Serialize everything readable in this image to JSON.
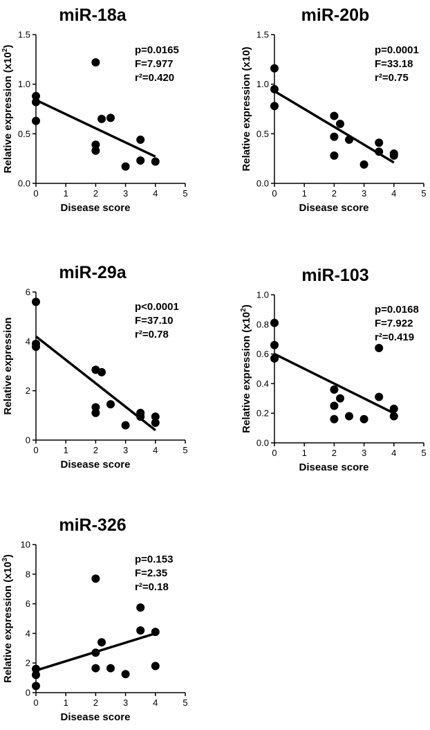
{
  "chart_data": [
    {
      "type": "scatter",
      "title": "miR-18a",
      "xlabel": "Disease score",
      "ylabel": "Relative expression (x10",
      "ylabel_exp": "2",
      "xlim": [
        0,
        5
      ],
      "ylim": [
        0,
        1.5
      ],
      "xticks": [
        "0",
        "1",
        "2",
        "3",
        "4",
        "5"
      ],
      "yticks": [
        "0.0",
        "0.5",
        "1.0",
        "1.5"
      ],
      "stats": [
        "p=0.0165",
        "F=7.977",
        "r²=0.420"
      ],
      "x": [
        0,
        0,
        0,
        2,
        2,
        2,
        2.2,
        2.5,
        3,
        3.5,
        3.5,
        4
      ],
      "y": [
        0.88,
        0.82,
        0.63,
        1.22,
        0.39,
        0.33,
        0.65,
        0.66,
        0.17,
        0.44,
        0.23,
        0.22
      ],
      "fit": {
        "x": [
          0,
          4
        ],
        "y": [
          0.84,
          0.27
        ]
      }
    },
    {
      "type": "scatter",
      "title": "miR-20b",
      "xlabel": "Disease score",
      "ylabel": "Relative expression (x10)",
      "ylabel_exp": "",
      "xlim": [
        0,
        5
      ],
      "ylim": [
        0,
        1.5
      ],
      "xticks": [
        "0",
        "1",
        "2",
        "3",
        "4",
        "5"
      ],
      "yticks": [
        "0.0",
        "0.5",
        "1.0",
        "1.5"
      ],
      "stats": [
        "p=0.0001",
        "F=33.18",
        "r²=0.75"
      ],
      "x": [
        0,
        0,
        0,
        2,
        2,
        2,
        2.2,
        2.5,
        3,
        3.5,
        3.5,
        4,
        4
      ],
      "y": [
        1.16,
        0.95,
        0.78,
        0.68,
        0.47,
        0.28,
        0.6,
        0.44,
        0.19,
        0.41,
        0.32,
        0.3,
        0.28
      ],
      "fit": {
        "x": [
          0,
          4
        ],
        "y": [
          0.93,
          0.21
        ]
      }
    },
    {
      "type": "scatter",
      "title": "miR-29a",
      "xlabel": "Disease score",
      "ylabel": "Relative expression",
      "ylabel_exp": "",
      "xlim": [
        0,
        5
      ],
      "ylim": [
        0,
        6
      ],
      "xticks": [
        "0",
        "1",
        "2",
        "3",
        "4",
        "5"
      ],
      "yticks": [
        "0",
        "2",
        "4",
        "6"
      ],
      "stats": [
        "p<0.0001",
        "F=37.10",
        "r²=0.78"
      ],
      "x": [
        0,
        0,
        0,
        2,
        2,
        2,
        2.2,
        2.5,
        3,
        3.5,
        3.5,
        4,
        4
      ],
      "y": [
        5.6,
        3.9,
        3.78,
        2.85,
        1.33,
        1.1,
        2.75,
        1.45,
        0.6,
        1.1,
        0.95,
        0.95,
        0.7
      ],
      "fit": {
        "x": [
          0,
          4
        ],
        "y": [
          4.2,
          0.4
        ]
      }
    },
    {
      "type": "scatter",
      "title": "miR-103",
      "xlabel": "Disease score",
      "ylabel": "Relative expression (x10",
      "ylabel_exp": "2",
      "xlim": [
        0,
        5
      ],
      "ylim": [
        0,
        1.0
      ],
      "xticks": [
        "0",
        "1",
        "2",
        "3",
        "4",
        "5"
      ],
      "yticks": [
        "0.0",
        "0.2",
        "0.4",
        "0.6",
        "0.8",
        "1.0"
      ],
      "stats": [
        "p=0.0168",
        "F=7.922",
        "r²=0.419"
      ],
      "x": [
        0,
        0,
        0,
        2,
        2,
        2,
        2.2,
        2.5,
        3,
        3.5,
        3.5,
        4,
        4
      ],
      "y": [
        0.81,
        0.66,
        0.57,
        0.36,
        0.25,
        0.16,
        0.3,
        0.18,
        0.16,
        0.64,
        0.31,
        0.23,
        0.18
      ],
      "fit": {
        "x": [
          0,
          4
        ],
        "y": [
          0.6,
          0.2
        ]
      }
    },
    {
      "type": "scatter",
      "title": "miR-326",
      "xlabel": "Disease score",
      "ylabel": "Relative expression (x10",
      "ylabel_exp": "3",
      "xlim": [
        0,
        5
      ],
      "ylim": [
        0,
        10
      ],
      "xticks": [
        "0",
        "1",
        "2",
        "3",
        "4",
        "5"
      ],
      "yticks": [
        "0",
        "2",
        "4",
        "6",
        "8",
        "10"
      ],
      "stats": [
        "p=0.153",
        "F=2.35",
        "r²=0.18"
      ],
      "x": [
        0,
        0,
        0,
        2,
        2,
        2,
        2.2,
        2.5,
        3,
        3.5,
        3.5,
        4,
        4
      ],
      "y": [
        1.6,
        1.2,
        0.45,
        7.7,
        2.7,
        1.65,
        3.4,
        1.65,
        1.25,
        5.75,
        4.2,
        4.1,
        1.8
      ],
      "fit": {
        "x": [
          0,
          4
        ],
        "y": [
          1.5,
          4.0
        ]
      }
    }
  ]
}
